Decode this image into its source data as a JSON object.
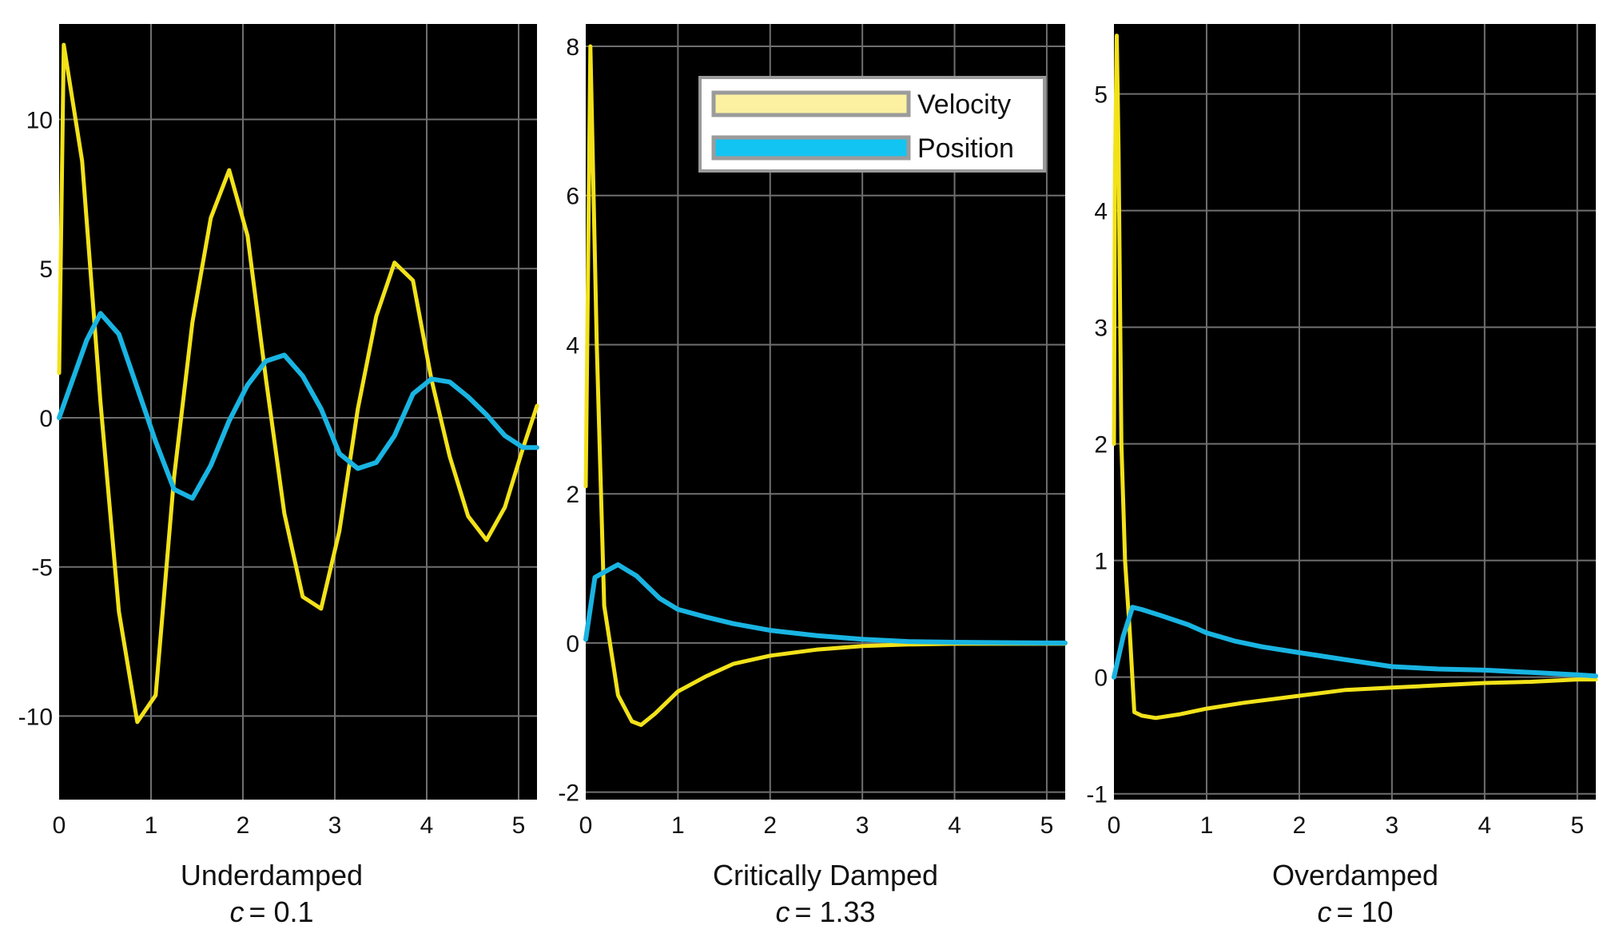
{
  "colors": {
    "velocity": "#f2e21a",
    "position": "#19b4e2",
    "plot_bg": "#000000",
    "grid": "#6f6f6f",
    "legend_velocity_fill": "#fbf1a0",
    "legend_position_fill": "#12c4f2"
  },
  "legend": {
    "velocity_label": "Velocity",
    "position_label": "Position",
    "placement": "top-right of middle panel"
  },
  "chart_data": [
    {
      "type": "line",
      "title": "Underdamped",
      "subtitle_var": "c",
      "subtitle_value": "= 0.1",
      "xlim": [
        0,
        5.2
      ],
      "ylim": [
        -12.8,
        13.2
      ],
      "xticks": [
        0,
        1,
        2,
        3,
        4,
        5
      ],
      "xtick_labels": [
        "0",
        "1",
        "2",
        "3",
        "4",
        "5"
      ],
      "yticks": [
        -10,
        -5,
        0,
        5,
        10
      ],
      "ytick_labels": [
        "-10",
        "-5",
        "0",
        "5",
        "10"
      ],
      "series": [
        {
          "name": "Velocity",
          "x": [
            0,
            0.05,
            0.25,
            0.45,
            0.65,
            0.85,
            1.05,
            1.25,
            1.45,
            1.65,
            1.85,
            2.05,
            2.25,
            2.45,
            2.65,
            2.85,
            3.05,
            3.25,
            3.45,
            3.65,
            3.85,
            4.05,
            4.25,
            4.45,
            4.65,
            4.85,
            5.05,
            5.2
          ],
          "y": [
            1.5,
            12.5,
            8.6,
            0.5,
            -6.5,
            -10.2,
            -9.3,
            -2.0,
            3.2,
            6.7,
            8.3,
            6.1,
            1.3,
            -3.2,
            -6.0,
            -6.4,
            -3.8,
            0.3,
            3.4,
            5.2,
            4.6,
            1.3,
            -1.3,
            -3.3,
            -4.1,
            -3.0,
            -1.0,
            0.4
          ]
        },
        {
          "name": "Position",
          "x": [
            0,
            0.15,
            0.3,
            0.45,
            0.65,
            0.85,
            1.05,
            1.25,
            1.45,
            1.65,
            1.85,
            2.05,
            2.25,
            2.45,
            2.65,
            2.85,
            3.05,
            3.25,
            3.45,
            3.65,
            3.85,
            4.05,
            4.25,
            4.45,
            4.65,
            4.85,
            5.05,
            5.2
          ],
          "y": [
            0,
            1.3,
            2.6,
            3.5,
            2.8,
            1.0,
            -0.8,
            -2.4,
            -2.7,
            -1.6,
            -0.1,
            1.1,
            1.9,
            2.1,
            1.4,
            0.3,
            -1.2,
            -1.7,
            -1.5,
            -0.6,
            0.8,
            1.3,
            1.2,
            0.7,
            0.1,
            -0.6,
            -1.0,
            -1.0
          ]
        }
      ]
    },
    {
      "type": "line",
      "title": "Critically Damped",
      "subtitle_var": "c",
      "subtitle_value": "= 1.33",
      "xlim": [
        0,
        5.2
      ],
      "ylim": [
        -2.1,
        8.3
      ],
      "xticks": [
        0,
        1,
        2,
        3,
        4,
        5
      ],
      "xtick_labels": [
        "0",
        "1",
        "2",
        "3",
        "4",
        "5"
      ],
      "yticks": [
        -2,
        0,
        2,
        4,
        6,
        8
      ],
      "ytick_labels": [
        "-2",
        "0",
        "2",
        "4",
        "6",
        "8"
      ],
      "series": [
        {
          "name": "Velocity",
          "x": [
            0,
            0.05,
            0.12,
            0.2,
            0.35,
            0.5,
            0.6,
            0.75,
            1.0,
            1.3,
            1.6,
            2.0,
            2.5,
            3.0,
            3.5,
            4.0,
            5.0,
            5.2
          ],
          "y": [
            2.1,
            8.0,
            4.0,
            0.5,
            -0.7,
            -1.05,
            -1.1,
            -0.95,
            -0.65,
            -0.45,
            -0.28,
            -0.17,
            -0.09,
            -0.04,
            -0.02,
            -0.01,
            -0.01,
            -0.01
          ],
          "note": "x values start near 0 but trace shifted slightly right of axis"
        },
        {
          "name": "Position",
          "x": [
            0,
            0.1,
            0.2,
            0.35,
            0.55,
            0.8,
            1.0,
            1.3,
            1.6,
            2.0,
            2.5,
            3.0,
            3.5,
            4.0,
            5.0,
            5.2
          ],
          "y": [
            0.05,
            0.88,
            0.95,
            1.05,
            0.9,
            0.6,
            0.45,
            0.35,
            0.26,
            0.17,
            0.1,
            0.05,
            0.02,
            0.01,
            0.0,
            0.0
          ]
        }
      ]
    },
    {
      "type": "line",
      "title": "Overdamped",
      "subtitle_var": "c",
      "subtitle_value": "= 10",
      "xlim": [
        0,
        5.2
      ],
      "ylim": [
        -1.05,
        5.6
      ],
      "xticks": [
        0,
        1,
        2,
        3,
        4,
        5
      ],
      "xtick_labels": [
        "0",
        "1",
        "2",
        "3",
        "4",
        "5"
      ],
      "yticks": [
        -1,
        0,
        1,
        2,
        3,
        4,
        5
      ],
      "ytick_labels": [
        "-1",
        "0",
        "1",
        "2",
        "3",
        "4",
        "5"
      ],
      "series": [
        {
          "name": "Velocity",
          "x": [
            0.0,
            0.01,
            0.03,
            0.05,
            0.08,
            0.12,
            0.17,
            0.22,
            0.3,
            0.45,
            0.7,
            1.0,
            1.4,
            2.0,
            2.5,
            3.0,
            3.5,
            4.0,
            4.5,
            5.0,
            5.2
          ],
          "y": [
            2.0,
            4.3,
            5.5,
            4.5,
            2.0,
            1.0,
            0.4,
            -0.3,
            -0.33,
            -0.35,
            -0.32,
            -0.27,
            -0.22,
            -0.16,
            -0.11,
            -0.09,
            -0.07,
            -0.05,
            -0.04,
            -0.02,
            -0.02
          ]
        },
        {
          "name": "Position",
          "x": [
            0,
            0.1,
            0.2,
            0.3,
            0.5,
            0.8,
            1.0,
            1.3,
            1.6,
            2.0,
            2.5,
            3.0,
            3.5,
            4.0,
            4.5,
            5.0,
            5.2
          ],
          "y": [
            0.0,
            0.35,
            0.6,
            0.58,
            0.53,
            0.45,
            0.38,
            0.31,
            0.26,
            0.21,
            0.15,
            0.09,
            0.07,
            0.06,
            0.04,
            0.02,
            0.01
          ]
        }
      ]
    }
  ]
}
